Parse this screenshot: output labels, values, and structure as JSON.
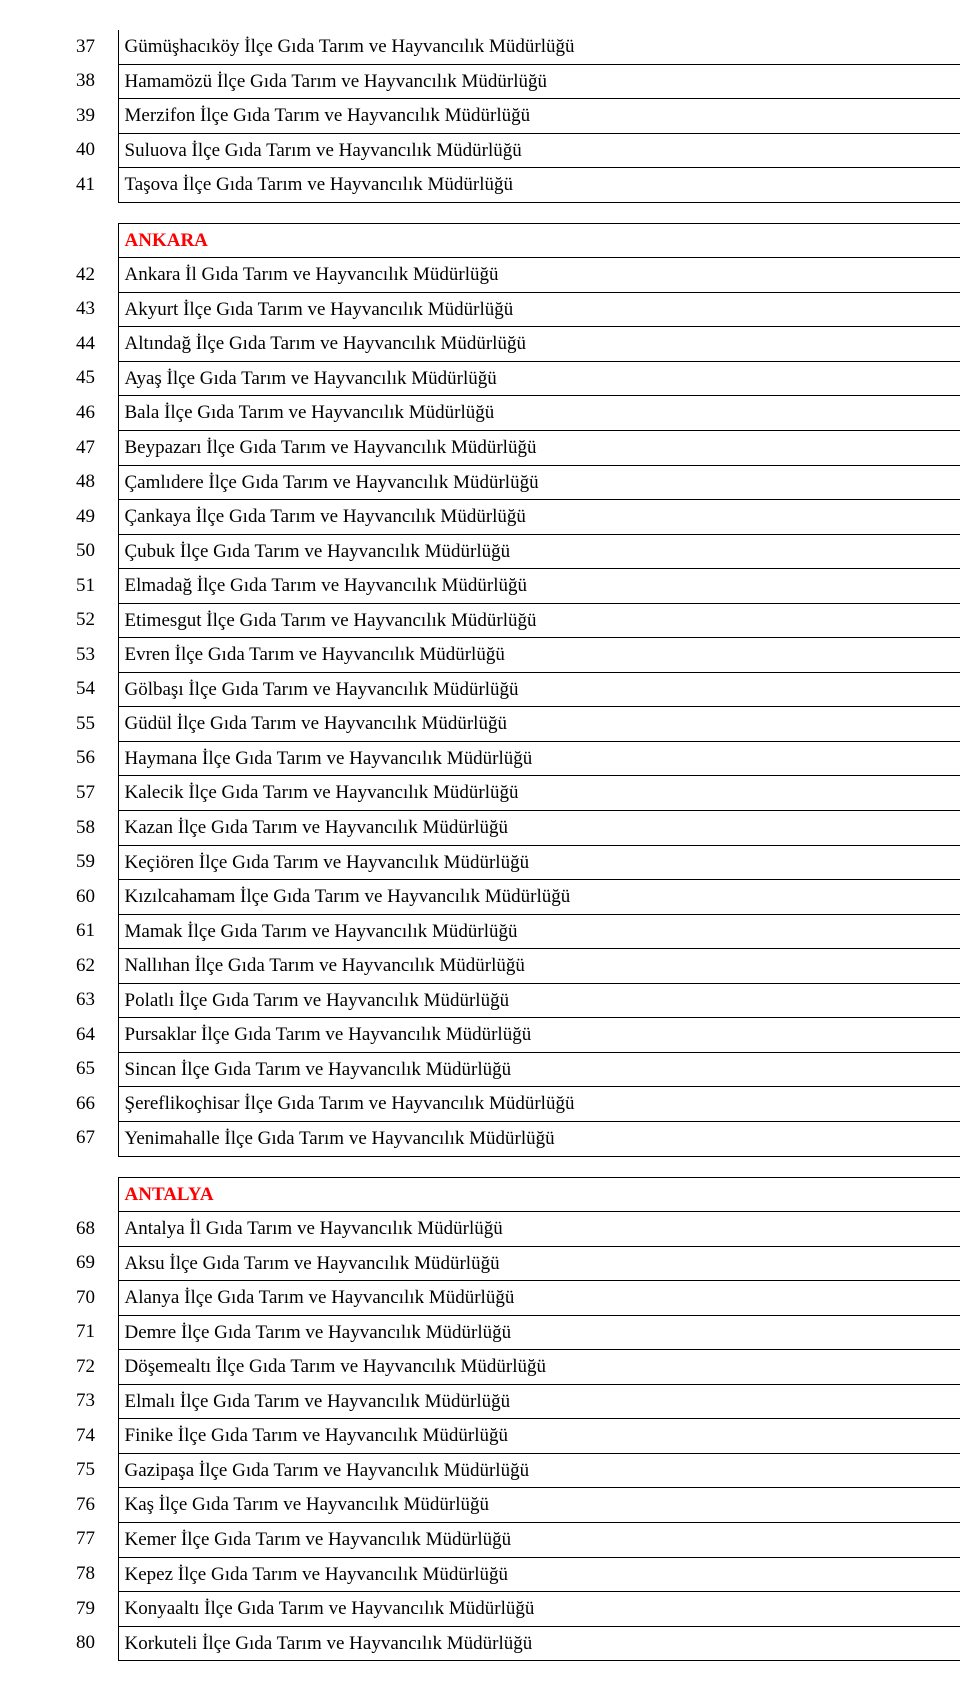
{
  "colors": {
    "header_text": "#ff0000",
    "body_text": "#000000",
    "border": "#000000",
    "background": "#ffffff"
  },
  "typography": {
    "font_family": "Times New Roman",
    "body_fontsize_pt": 14,
    "header_fontweight": "bold"
  },
  "blocks": [
    {
      "header": null,
      "rows": [
        {
          "n": "37",
          "label": "Gümüşhacıköy İlçe Gıda Tarım ve Hayvancılık Müdürlüğü"
        },
        {
          "n": "38",
          "label": "Hamamözü İlçe Gıda Tarım ve Hayvancılık Müdürlüğü"
        },
        {
          "n": "39",
          "label": "Merzifon İlçe Gıda Tarım ve Hayvancılık Müdürlüğü"
        },
        {
          "n": "40",
          "label": "Suluova İlçe Gıda Tarım ve Hayvancılık Müdürlüğü"
        },
        {
          "n": "41",
          "label": "Taşova İlçe Gıda Tarım ve Hayvancılık Müdürlüğü"
        }
      ]
    },
    {
      "header": "ANKARA",
      "rows": [
        {
          "n": "42",
          "label": "Ankara İl Gıda Tarım ve Hayvancılık Müdürlüğü"
        },
        {
          "n": "43",
          "label": "Akyurt İlçe Gıda Tarım ve Hayvancılık Müdürlüğü"
        },
        {
          "n": "44",
          "label": "Altındağ İlçe Gıda Tarım ve Hayvancılık Müdürlüğü"
        },
        {
          "n": "45",
          "label": "Ayaş İlçe Gıda Tarım ve Hayvancılık Müdürlüğü"
        },
        {
          "n": "46",
          "label": "Bala İlçe Gıda Tarım ve Hayvancılık Müdürlüğü"
        },
        {
          "n": "47",
          "label": "Beypazarı İlçe Gıda Tarım ve Hayvancılık Müdürlüğü"
        },
        {
          "n": "48",
          "label": "Çamlıdere İlçe Gıda Tarım ve Hayvancılık Müdürlüğü"
        },
        {
          "n": "49",
          "label": "Çankaya İlçe Gıda Tarım ve Hayvancılık Müdürlüğü"
        },
        {
          "n": "50",
          "label": "Çubuk İlçe Gıda Tarım ve Hayvancılık Müdürlüğü"
        },
        {
          "n": "51",
          "label": "Elmadağ İlçe Gıda Tarım ve Hayvancılık Müdürlüğü"
        },
        {
          "n": "52",
          "label": "Etimesgut İlçe Gıda Tarım ve Hayvancılık Müdürlüğü"
        },
        {
          "n": "53",
          "label": "Evren İlçe Gıda Tarım ve Hayvancılık Müdürlüğü"
        },
        {
          "n": "54",
          "label": "Gölbaşı İlçe Gıda Tarım ve Hayvancılık Müdürlüğü"
        },
        {
          "n": "55",
          "label": "Güdül İlçe Gıda Tarım ve Hayvancılık Müdürlüğü"
        },
        {
          "n": "56",
          "label": "Haymana İlçe Gıda Tarım ve Hayvancılık Müdürlüğü"
        },
        {
          "n": "57",
          "label": "Kalecik İlçe Gıda Tarım ve Hayvancılık Müdürlüğü"
        },
        {
          "n": "58",
          "label": "Kazan İlçe Gıda Tarım ve Hayvancılık Müdürlüğü"
        },
        {
          "n": "59",
          "label": "Keçiören İlçe Gıda Tarım ve Hayvancılık Müdürlüğü"
        },
        {
          "n": "60",
          "label": "Kızılcahamam İlçe Gıda Tarım ve Hayvancılık Müdürlüğü"
        },
        {
          "n": "61",
          "label": "Mamak İlçe Gıda Tarım ve Hayvancılık Müdürlüğü"
        },
        {
          "n": "62",
          "label": "Nallıhan İlçe Gıda Tarım ve Hayvancılık Müdürlüğü"
        },
        {
          "n": "63",
          "label": "Polatlı İlçe Gıda Tarım ve Hayvancılık Müdürlüğü"
        },
        {
          "n": "64",
          "label": "Pursaklar İlçe Gıda Tarım ve Hayvancılık Müdürlüğü"
        },
        {
          "n": "65",
          "label": "Sincan İlçe Gıda Tarım ve Hayvancılık Müdürlüğü"
        },
        {
          "n": "66",
          "label": "Şereflikoçhisar İlçe Gıda Tarım ve Hayvancılık Müdürlüğü"
        },
        {
          "n": "67",
          "label": "Yenimahalle İlçe Gıda Tarım ve Hayvancılık Müdürlüğü"
        }
      ]
    },
    {
      "header": "ANTALYA",
      "rows": [
        {
          "n": "68",
          "label": "Antalya İl Gıda Tarım ve Hayvancılık Müdürlüğü"
        },
        {
          "n": "69",
          "label": "Aksu İlçe Gıda Tarım ve Hayvancılık Müdürlüğü"
        },
        {
          "n": "70",
          "label": "Alanya İlçe Gıda Tarım ve Hayvancılık Müdürlüğü"
        },
        {
          "n": "71",
          "label": "Demre İlçe Gıda Tarım ve Hayvancılık Müdürlüğü"
        },
        {
          "n": "72",
          "label": "Döşemealtı İlçe Gıda Tarım ve Hayvancılık Müdürlüğü"
        },
        {
          "n": "73",
          "label": "Elmalı İlçe Gıda Tarım ve Hayvancılık Müdürlüğü"
        },
        {
          "n": "74",
          "label": "Finike İlçe Gıda Tarım ve Hayvancılık Müdürlüğü"
        },
        {
          "n": "75",
          "label": "Gazipaşa İlçe Gıda Tarım ve Hayvancılık Müdürlüğü"
        },
        {
          "n": "76",
          "label": "Kaş İlçe Gıda Tarım ve Hayvancılık Müdürlüğü"
        },
        {
          "n": "77",
          "label": "Kemer İlçe Gıda Tarım ve Hayvancılık Müdürlüğü"
        },
        {
          "n": "78",
          "label": "Kepez İlçe Gıda Tarım ve Hayvancılık Müdürlüğü"
        },
        {
          "n": "79",
          "label": "Konyaaltı İlçe Gıda Tarım ve Hayvancılık Müdürlüğü"
        },
        {
          "n": "80",
          "label": "Korkuteli İlçe Gıda Tarım ve Hayvancılık Müdürlüğü"
        }
      ]
    }
  ]
}
